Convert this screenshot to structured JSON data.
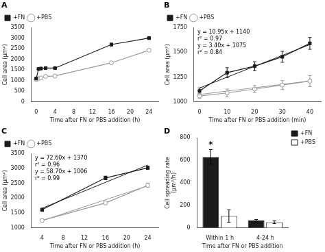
{
  "chart_data": [
    {
      "type": "line",
      "title": "A",
      "x_label": "Time after FN or PBS addition (h)",
      "y_label": "Cell area (μm²)",
      "xlim": [
        -1,
        26
      ],
      "xticks": [
        0,
        4,
        8,
        12,
        16,
        20,
        24
      ],
      "ylim": [
        0,
        3500
      ],
      "yticks": [
        0,
        500,
        1000,
        1500,
        2000,
        2500,
        3000,
        3500
      ],
      "grid": false,
      "legend": "upper left",
      "series": [
        {
          "name": "+FN",
          "color": "#1a1a1a",
          "marker": "square",
          "x": [
            0,
            0.5,
            1,
            2,
            4,
            16,
            24
          ],
          "values": [
            1100,
            1550,
            1570,
            1590,
            1590,
            2700,
            3000
          ],
          "errors": [
            50,
            40,
            40,
            40,
            40,
            60,
            50
          ]
        },
        {
          "name": "+PBS",
          "color": "#999999",
          "marker": "open_circle",
          "x": [
            0,
            0.5,
            1,
            2,
            4,
            16,
            24
          ],
          "values": [
            1050,
            1100,
            1130,
            1200,
            1220,
            1840,
            2430
          ],
          "errors": [
            40,
            30,
            30,
            30,
            40,
            60,
            60
          ]
        }
      ]
    },
    {
      "type": "line",
      "title": "B",
      "x_label": "Time after FN or PBS addition (min)",
      "y_label": "Cell area (μm²)",
      "xlim": [
        -2,
        44
      ],
      "xticks": [
        0,
        10,
        20,
        30,
        40
      ],
      "ylim": [
        1000,
        1750
      ],
      "yticks": [
        1000,
        1250,
        1500,
        1750
      ],
      "grid": false,
      "legend": "upper left",
      "series": [
        {
          "name": "+FN",
          "color": "#1a1a1a",
          "marker": "square",
          "x": [
            0,
            10,
            20,
            30,
            40
          ],
          "values": [
            1110,
            1295,
            1360,
            1455,
            1590
          ],
          "errors": [
            30,
            50,
            45,
            55,
            60
          ],
          "fit": {
            "x": [
              0,
              40
            ],
            "values": [
              1140,
              1578
            ]
          }
        },
        {
          "name": "+PBS",
          "color": "#999999",
          "marker": "open_circle",
          "x": [
            0,
            10,
            20,
            30,
            40
          ],
          "values": [
            1060,
            1090,
            1130,
            1170,
            1210
          ],
          "errors": [
            25,
            40,
            35,
            45,
            55
          ],
          "fit": {
            "x": [
              0,
              40
            ],
            "values": [
              1075,
              1211
            ]
          }
        }
      ],
      "annotations": [
        {
          "text": "y = 10.95x + 1140"
        },
        {
          "text": "r² = 0.97"
        },
        {
          "text": "y = 3.40x + 1075"
        },
        {
          "text": "r² = 0.84"
        }
      ]
    },
    {
      "type": "line",
      "title": "C",
      "x_label": "Time after FN or PBS addition (h)",
      "y_label": "Cell area (μm²)",
      "xlim": [
        2,
        26
      ],
      "xticks": [
        4,
        8,
        12,
        16,
        20,
        24
      ],
      "ylim": [
        1000,
        3500
      ],
      "yticks": [
        1000,
        1500,
        2000,
        2500,
        3000,
        3500
      ],
      "grid": false,
      "legend": "upper left",
      "series": [
        {
          "name": "+FN",
          "color": "#1a1a1a",
          "marker": "square",
          "x": [
            4,
            16,
            24
          ],
          "values": [
            1610,
            2680,
            3020
          ],
          "errors": [
            50,
            60,
            50
          ],
          "fit": {
            "x": [
              4,
              24
            ],
            "values": [
              1660,
              3112
            ]
          }
        },
        {
          "name": "+PBS",
          "color": "#999999",
          "marker": "open_circle",
          "x": [
            4,
            16,
            24
          ],
          "values": [
            1250,
            1840,
            2430
          ],
          "errors": [
            40,
            55,
            70
          ],
          "fit": {
            "x": [
              4,
              24
            ],
            "values": [
              1241,
              2415
            ]
          }
        }
      ],
      "annotations": [
        {
          "text": "y = 72.60x + 1370"
        },
        {
          "text": "r² = 0.96"
        },
        {
          "text": "y = 58.70x + 1006"
        },
        {
          "text": "r² = 0.99"
        }
      ]
    },
    {
      "type": "bar",
      "title": "D",
      "x_label": "Time after FN or PBS addition",
      "y_label": "Cell spreading rate\n(μm²/h)",
      "categories": [
        "Within 1 h",
        "4-24 h"
      ],
      "ylim": [
        0,
        800
      ],
      "yticks": [
        0,
        200,
        400,
        600,
        800
      ],
      "grid": false,
      "legend": "right",
      "series": [
        {
          "name": "+FN",
          "color": "#1a1a1a",
          "values": [
            630,
            65
          ],
          "errors": [
            65,
            10
          ]
        },
        {
          "name": "+PBS",
          "color": "#1a1a1a",
          "marker": "open",
          "values": [
            105,
            50
          ],
          "errors": [
            55,
            12
          ]
        }
      ],
      "annotations": [
        {
          "text": "*",
          "series": "+FN",
          "category": "Within 1 h"
        }
      ]
    }
  ]
}
